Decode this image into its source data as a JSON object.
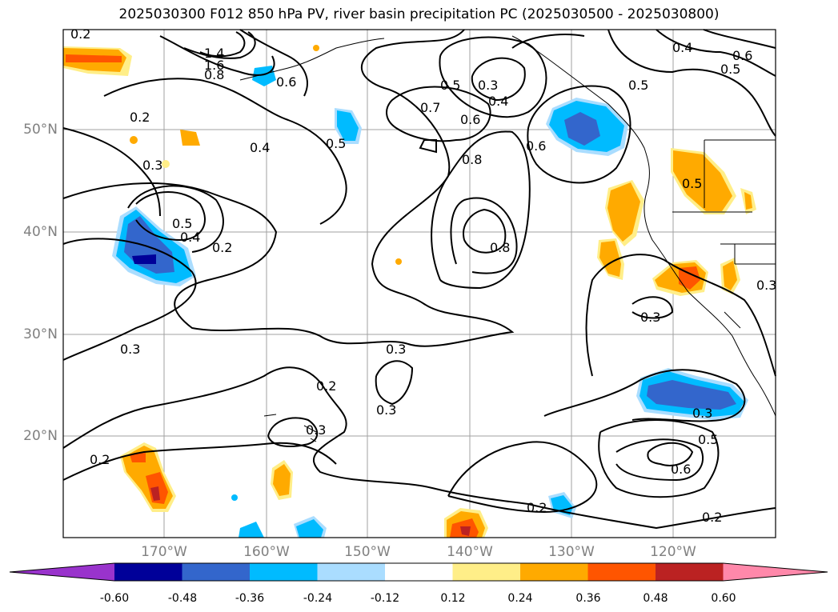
{
  "title": "2025030300 F012 850 hPa PV, river basin precipitation PC (2025030500 - 2025030800)",
  "map": {
    "lat_labels": [
      "50°N",
      "40°N",
      "30°N",
      "20°N"
    ],
    "lon_labels": [
      "170°W",
      "160°W",
      "150°W",
      "140°W",
      "130°W",
      "120°W"
    ],
    "gridline_color": "#a0a0a0"
  },
  "contour_labels": [
    {
      "text": "0.2"
    },
    {
      "text": "1.4"
    },
    {
      "text": "1.6"
    },
    {
      "text": "0.8"
    },
    {
      "text": "0.6"
    },
    {
      "text": "0.2"
    },
    {
      "text": "0.5"
    },
    {
      "text": "0.4"
    },
    {
      "text": "0.3"
    },
    {
      "text": "0.5"
    },
    {
      "text": "0.4"
    },
    {
      "text": "0.2"
    },
    {
      "text": "0.3"
    },
    {
      "text": "0.5"
    },
    {
      "text": "0.7"
    },
    {
      "text": "0.6"
    },
    {
      "text": "0.3"
    },
    {
      "text": "0.4"
    },
    {
      "text": "0.8"
    },
    {
      "text": "0.8"
    },
    {
      "text": "0.6"
    },
    {
      "text": "0.3"
    },
    {
      "text": "0.4"
    },
    {
      "text": "0.5"
    },
    {
      "text": "0.6"
    },
    {
      "text": "0.5"
    },
    {
      "text": "0.5"
    },
    {
      "text": "0.3"
    },
    {
      "text": "0.3"
    },
    {
      "text": "0.3"
    },
    {
      "text": "0.6"
    },
    {
      "text": "0.5"
    },
    {
      "text": "0.2"
    },
    {
      "text": "0.2"
    },
    {
      "text": "0.2"
    },
    {
      "text": "0.3"
    },
    {
      "text": "0.3"
    },
    {
      "text": "0.2"
    }
  ],
  "colorbar": {
    "colors": [
      "#9933cc",
      "#000099",
      "#3366cc",
      "#00bbff",
      "#aaddff",
      "#ffffff",
      "#ffee88",
      "#ffaa00",
      "#ff5500",
      "#bb2222",
      "#ff88aa"
    ],
    "labels": [
      "-0.60",
      "-0.48",
      "-0.36",
      "-0.24",
      "-0.12",
      "0.12",
      "0.24",
      "0.36",
      "0.48",
      "0.60"
    ]
  }
}
